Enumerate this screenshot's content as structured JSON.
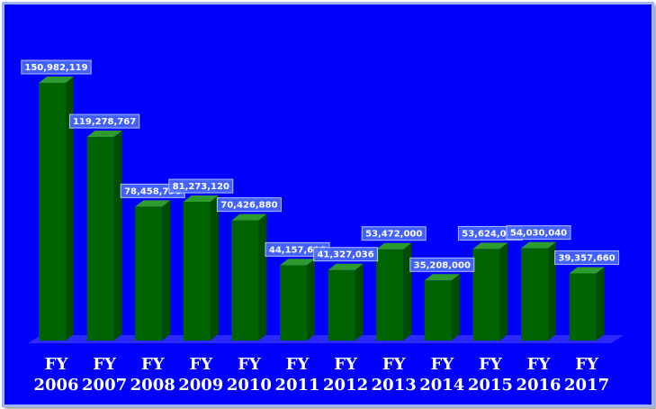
{
  "chart_data": {
    "type": "bar",
    "categories": [
      [
        "FY",
        "2006"
      ],
      [
        "FY",
        "2007"
      ],
      [
        "FY",
        "2008"
      ],
      [
        "FY",
        "2009"
      ],
      [
        "FY",
        "2010"
      ],
      [
        "FY",
        "2011"
      ],
      [
        "FY",
        "2012"
      ],
      [
        "FY",
        "2013"
      ],
      [
        "FY",
        "2014"
      ],
      [
        "FY",
        "2015"
      ],
      [
        "FY",
        "2016"
      ],
      [
        "FY",
        "2017"
      ]
    ],
    "values": [
      150982119,
      119278767,
      78458796,
      81273120,
      70426880,
      44157616,
      41327036,
      53472000,
      35208000,
      53624000,
      54030040,
      39357660
    ],
    "data_labels": [
      "150,982,119",
      "119,278,767",
      "78,458,796",
      "81,273,120",
      "70,426,880",
      "44,157,616",
      "41,327,036",
      "53,472,000",
      "35,208,000",
      "53,624,000",
      "54,030,040",
      "39,357,660"
    ],
    "title": "",
    "xlabel": "",
    "ylabel": "",
    "ylim": [
      0,
      160000000
    ],
    "grid": false,
    "legend": "none",
    "bar_style": "3d"
  },
  "colors": {
    "background": "#0000ff",
    "bar_front": "#006400",
    "bar_side": "#004d00",
    "bar_top": "#2e9b2e",
    "floor": "#3333ff",
    "label_box": "#4a6cff",
    "text": "#ffffff"
  }
}
